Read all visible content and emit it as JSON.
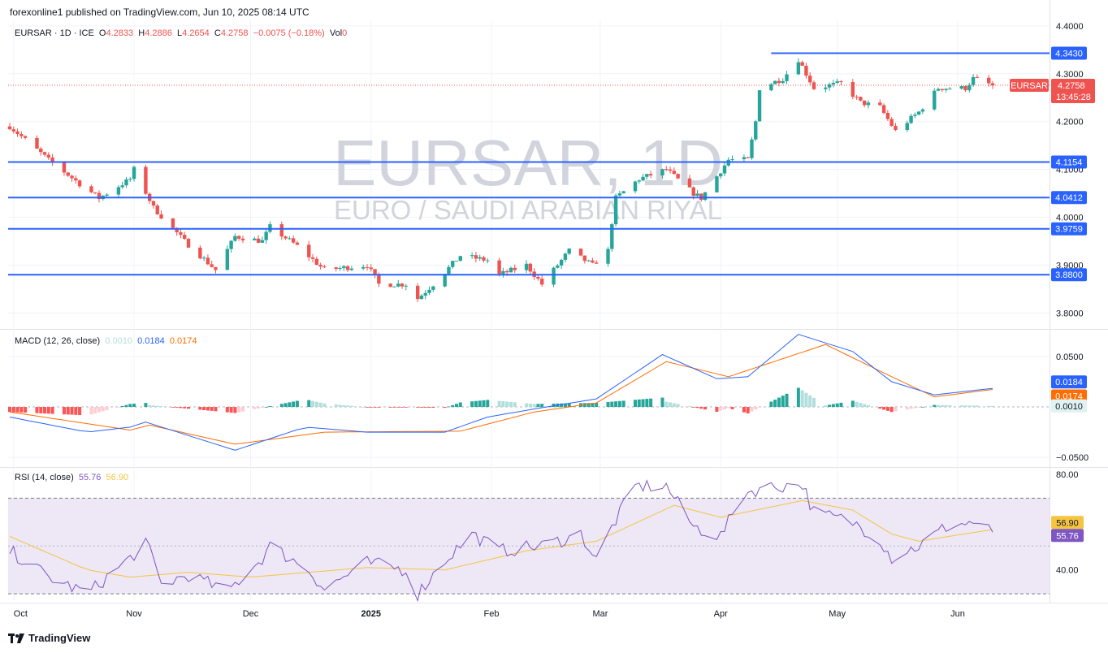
{
  "header": {
    "published": "forexonline1 published on TradingView.com, Jun 10, 2025 08:14 UTC"
  },
  "legend": {
    "symbol": "EURSAR · 1D · ICE",
    "o_label": "O",
    "o_value": "4.2833",
    "h_label": "H",
    "h_value": "4.2886",
    "l_label": "L",
    "l_value": "4.2654",
    "c_label": "C",
    "c_value": "4.2758",
    "change": "−0.0075 (−0.18%)",
    "vol_label": "Vol",
    "vol_value": "0"
  },
  "watermark": {
    "symbol": "EURSAR, 1D",
    "description": "EURO / SAUDI ARABIAN RIYAL"
  },
  "macd_legend": {
    "title": "MACD (12, 26, close)",
    "hist": "0.0010",
    "macd": "0.0184",
    "signal": "0.0174"
  },
  "rsi_legend": {
    "title": "RSI (14, close)",
    "rsi": "55.76",
    "ma": "56.90"
  },
  "branding": {
    "logo_text": "TradingView"
  },
  "colors": {
    "up": "#26a69a",
    "down": "#ef5350",
    "level": "#2962ff",
    "macd": "#2962ff",
    "signal": "#ff6d00",
    "rsi": "#7e57c2",
    "rsi_ma": "#f5c542",
    "rsi_band": "#ede7f6"
  },
  "chart_data": [
    {
      "type": "candlestick",
      "symbol": "EURSAR",
      "timeframe": "1D",
      "x_labels": [
        "Oct",
        "Nov",
        "Dec",
        "2025",
        "Feb",
        "Mar",
        "Apr",
        "May",
        "Jun"
      ],
      "y_ticks": [
        "4.4000",
        "4.3000",
        "4.2000",
        "4.1000",
        "4.0000",
        "3.9000",
        "3.8000"
      ],
      "ylim": [
        3.77,
        4.41
      ],
      "last_price": {
        "value": "4.2758",
        "label": "EURSAR",
        "countdown": "13:45:28"
      },
      "horizontal_levels": [
        {
          "value": 4.343,
          "label": "4.3430"
        },
        {
          "value": 4.1154,
          "label": "4.1154"
        },
        {
          "value": 4.0412,
          "label": "4.0412"
        },
        {
          "value": 3.9759,
          "label": "3.9759"
        },
        {
          "value": 3.88,
          "label": "3.8800"
        }
      ],
      "close_path": [
        [
          "2024-09-30",
          4.19
        ],
        [
          "2024-10-10",
          4.12
        ],
        [
          "2024-10-18",
          4.07
        ],
        [
          "2024-10-23",
          4.04
        ],
        [
          "2024-10-31",
          4.08
        ],
        [
          "2024-11-01",
          4.1
        ],
        [
          "2024-11-06",
          4.02
        ],
        [
          "2024-11-14",
          3.95
        ],
        [
          "2024-11-22",
          3.89
        ],
        [
          "2024-11-27",
          3.96
        ],
        [
          "2024-12-04",
          3.95
        ],
        [
          "2024-12-06",
          3.98
        ],
        [
          "2024-12-13",
          3.94
        ],
        [
          "2024-12-20",
          3.89
        ],
        [
          "2024-12-31",
          3.9
        ],
        [
          "2025-01-03",
          3.86
        ],
        [
          "2025-01-10",
          3.86
        ],
        [
          "2025-01-13",
          3.83
        ],
        [
          "2025-01-17",
          3.86
        ],
        [
          "2025-01-24",
          3.92
        ],
        [
          "2025-01-31",
          3.91
        ],
        [
          "2025-02-03",
          3.88
        ],
        [
          "2025-02-10",
          3.9
        ],
        [
          "2025-02-14",
          3.86
        ],
        [
          "2025-02-21",
          3.93
        ],
        [
          "2025-02-27",
          3.9
        ],
        [
          "2025-03-03",
          3.93
        ],
        [
          "2025-03-04",
          3.99
        ],
        [
          "2025-03-05",
          4.04
        ],
        [
          "2025-03-11",
          4.08
        ],
        [
          "2025-03-18",
          4.1
        ],
        [
          "2025-03-25",
          4.05
        ],
        [
          "2025-03-27",
          4.04
        ],
        [
          "2025-04-03",
          4.12
        ],
        [
          "2025-04-08",
          4.12
        ],
        [
          "2025-04-10",
          4.2
        ],
        [
          "2025-04-11",
          4.27
        ],
        [
          "2025-04-17",
          4.29
        ],
        [
          "2025-04-21",
          4.33
        ],
        [
          "2025-04-25",
          4.27
        ],
        [
          "2025-05-02",
          4.28
        ],
        [
          "2025-05-07",
          4.24
        ],
        [
          "2025-05-12",
          4.23
        ],
        [
          "2025-05-16",
          4.18
        ],
        [
          "2025-05-22",
          4.22
        ],
        [
          "2025-05-27",
          4.27
        ],
        [
          "2025-06-03",
          4.27
        ],
        [
          "2025-06-05",
          4.29
        ],
        [
          "2025-06-10",
          4.2758
        ]
      ]
    },
    {
      "type": "line",
      "title": "MACD (12, 26, close)",
      "y_ticks": [
        "0.0500",
        "−0.0500"
      ],
      "ylim": [
        -0.058,
        0.075
      ],
      "last_values": {
        "macd": "0.0184",
        "signal": "0.0174",
        "histogram": "0.0010"
      },
      "series": [
        {
          "name": "MACD",
          "points": [
            [
              "2024-09-30",
              -0.01
            ],
            [
              "2024-10-20",
              -0.025
            ],
            [
              "2024-10-31",
              -0.02
            ],
            [
              "2024-11-04",
              -0.015
            ],
            [
              "2024-11-27",
              -0.043
            ],
            [
              "2024-12-15",
              -0.02
            ],
            [
              "2024-12-31",
              -0.025
            ],
            [
              "2025-01-20",
              -0.025
            ],
            [
              "2025-01-31",
              -0.01
            ],
            [
              "2025-02-12",
              -0.002
            ],
            [
              "2025-02-28",
              0.008
            ],
            [
              "2025-03-17",
              0.052
            ],
            [
              "2025-03-31",
              0.028
            ],
            [
              "2025-04-08",
              0.03
            ],
            [
              "2025-04-21",
              0.072
            ],
            [
              "2025-05-05",
              0.055
            ],
            [
              "2025-05-15",
              0.025
            ],
            [
              "2025-05-26",
              0.012
            ],
            [
              "2025-06-10",
              0.0184
            ]
          ]
        },
        {
          "name": "Signal",
          "points": [
            [
              "2024-09-30",
              -0.005
            ],
            [
              "2024-10-31",
              -0.023
            ],
            [
              "2024-11-05",
              -0.018
            ],
            [
              "2024-11-27",
              -0.037
            ],
            [
              "2024-12-20",
              -0.025
            ],
            [
              "2025-01-24",
              -0.024
            ],
            [
              "2025-02-12",
              -0.005
            ],
            [
              "2025-02-28",
              0.004
            ],
            [
              "2025-03-18",
              0.045
            ],
            [
              "2025-04-03",
              0.03
            ],
            [
              "2025-04-28",
              0.062
            ],
            [
              "2025-05-15",
              0.03
            ],
            [
              "2025-05-26",
              0.01
            ],
            [
              "2025-06-10",
              0.0174
            ]
          ]
        }
      ]
    },
    {
      "type": "line",
      "title": "RSI (14, close)",
      "y_ticks": [
        "80.00",
        "40.00"
      ],
      "ylim": [
        27,
        82
      ],
      "bands": [
        70,
        30
      ],
      "last_values": {
        "rsi": "55.76",
        "ma": "56.90"
      },
      "series": [
        {
          "name": "RSI",
          "points": [
            [
              "2024-09-30",
              48
            ],
            [
              "2024-10-10",
              37
            ],
            [
              "2024-10-20",
              30
            ],
            [
              "2024-10-31",
              45
            ],
            [
              "2024-11-04",
              52
            ],
            [
              "2024-11-08",
              34
            ],
            [
              "2024-11-15",
              38
            ],
            [
              "2024-11-25",
              31
            ],
            [
              "2024-12-04",
              45
            ],
            [
              "2024-12-06",
              50
            ],
            [
              "2024-12-16",
              40
            ],
            [
              "2024-12-20",
              32
            ],
            [
              "2024-12-31",
              43
            ],
            [
              "2025-01-10",
              40
            ],
            [
              "2025-01-13",
              30
            ],
            [
              "2025-01-20",
              44
            ],
            [
              "2025-01-27",
              55
            ],
            [
              "2025-02-03",
              48
            ],
            [
              "2025-02-14",
              50
            ],
            [
              "2025-02-24",
              55
            ],
            [
              "2025-02-28",
              44
            ],
            [
              "2025-03-04",
              58
            ],
            [
              "2025-03-10",
              75
            ],
            [
              "2025-03-18",
              75
            ],
            [
              "2025-03-25",
              58
            ],
            [
              "2025-04-01",
              54
            ],
            [
              "2025-04-07",
              72
            ],
            [
              "2025-04-11",
              74
            ],
            [
              "2025-04-22",
              76
            ],
            [
              "2025-04-25",
              64
            ],
            [
              "2025-05-05",
              60
            ],
            [
              "2025-05-12",
              53
            ],
            [
              "2025-05-15",
              45
            ],
            [
              "2025-05-22",
              50
            ],
            [
              "2025-05-29",
              58
            ],
            [
              "2025-06-05",
              60
            ],
            [
              "2025-06-10",
              55.76
            ]
          ]
        },
        {
          "name": "RSI MA",
          "points": [
            [
              "2024-09-30",
              54
            ],
            [
              "2024-10-20",
              40
            ],
            [
              "2024-10-31",
              37
            ],
            [
              "2024-11-15",
              39
            ],
            [
              "2024-12-01",
              37
            ],
            [
              "2024-12-31",
              41
            ],
            [
              "2025-01-20",
              40
            ],
            [
              "2025-02-10",
              48
            ],
            [
              "2025-02-28",
              52
            ],
            [
              "2025-03-20",
              67
            ],
            [
              "2025-04-01",
              62
            ],
            [
              "2025-04-22",
              69
            ],
            [
              "2025-05-05",
              65
            ],
            [
              "2025-05-15",
              55
            ],
            [
              "2025-05-22",
              52
            ],
            [
              "2025-06-10",
              56.9
            ]
          ]
        }
      ]
    }
  ]
}
